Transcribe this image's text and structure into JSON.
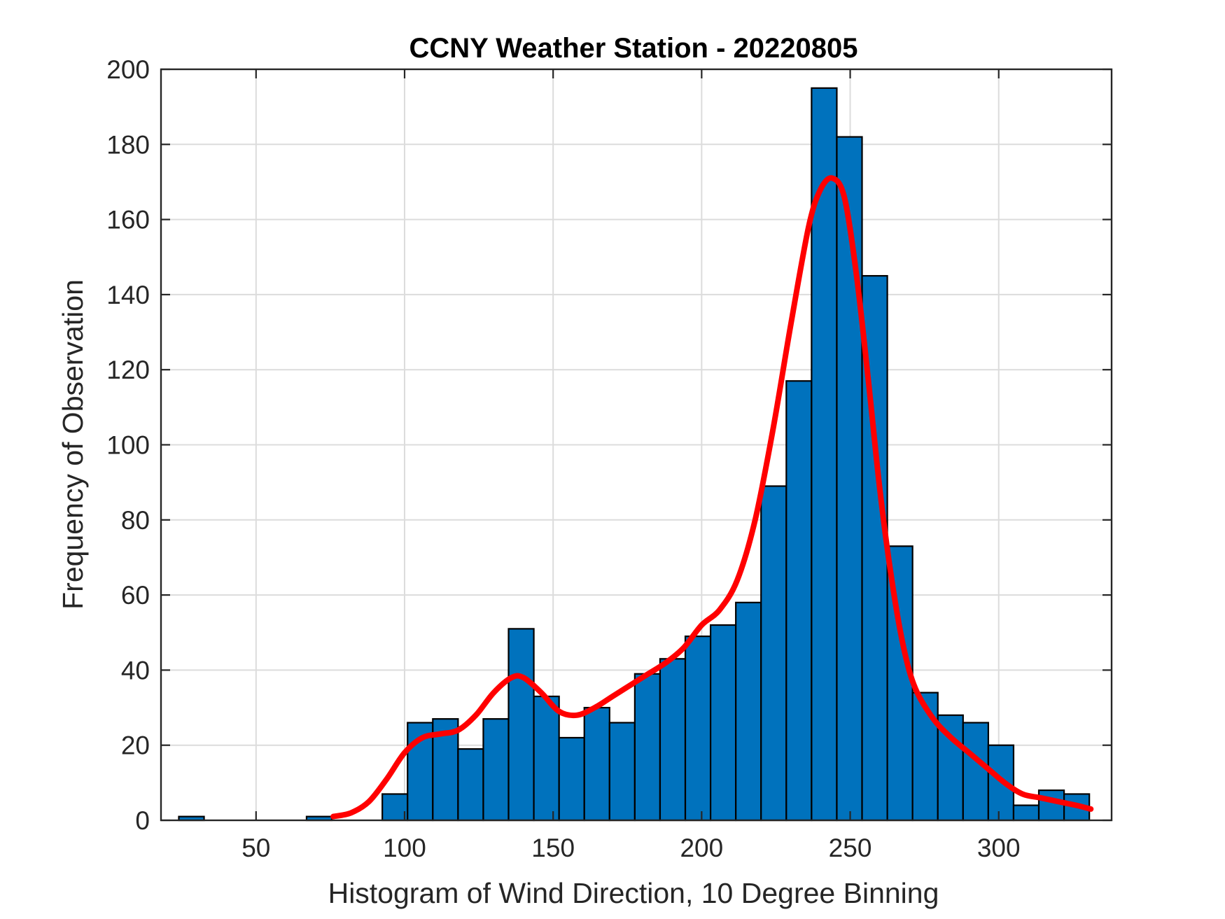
{
  "chart_data": {
    "type": "bar",
    "title": "CCNY Weather Station - 20220805",
    "xlabel": "Histogram of Wind Direction, 10 Degree Binning",
    "ylabel": "Frequency of Observation",
    "xlim": [
      18,
      338
    ],
    "ylim": [
      0,
      200
    ],
    "xticks": [
      50,
      100,
      150,
      200,
      250,
      300
    ],
    "yticks": [
      0,
      20,
      40,
      60,
      80,
      100,
      120,
      140,
      160,
      180,
      200
    ],
    "grid": true,
    "bin_width": 8.5,
    "bins": [
      {
        "left": 24,
        "value": 1
      },
      {
        "left": 67,
        "value": 1
      },
      {
        "left": 92.5,
        "value": 7
      },
      {
        "left": 101,
        "value": 26
      },
      {
        "left": 109.5,
        "value": 27
      },
      {
        "left": 118,
        "value": 19
      },
      {
        "left": 126.5,
        "value": 27
      },
      {
        "left": 135,
        "value": 51
      },
      {
        "left": 143.5,
        "value": 33
      },
      {
        "left": 152,
        "value": 22
      },
      {
        "left": 160.5,
        "value": 30
      },
      {
        "left": 169,
        "value": 26
      },
      {
        "left": 177.5,
        "value": 39
      },
      {
        "left": 186,
        "value": 43
      },
      {
        "left": 194.5,
        "value": 49
      },
      {
        "left": 203,
        "value": 52
      },
      {
        "left": 211.5,
        "value": 58
      },
      {
        "left": 220,
        "value": 89
      },
      {
        "left": 228.5,
        "value": 117
      },
      {
        "left": 237,
        "value": 195
      },
      {
        "left": 245.5,
        "value": 182
      },
      {
        "left": 254,
        "value": 145
      },
      {
        "left": 262.5,
        "value": 73
      },
      {
        "left": 271,
        "value": 34
      },
      {
        "left": 279.5,
        "value": 28
      },
      {
        "left": 288,
        "value": 26
      },
      {
        "left": 296.5,
        "value": 20
      },
      {
        "left": 305,
        "value": 4
      },
      {
        "left": 313.5,
        "value": 8
      },
      {
        "left": 322,
        "value": 7
      }
    ],
    "fit_curve": {
      "x": [
        76,
        82,
        88,
        94,
        100,
        106,
        112,
        118,
        124,
        130,
        136,
        140,
        146,
        152,
        158,
        164,
        170,
        176,
        182,
        188,
        194,
        200,
        206,
        212,
        218,
        224,
        230,
        236,
        240,
        244,
        248,
        252,
        256,
        260,
        264,
        268,
        272,
        278,
        284,
        290,
        296,
        302,
        308,
        314,
        320,
        326,
        331
      ],
      "y": [
        1,
        2,
        5,
        11,
        18,
        22,
        23,
        24,
        28,
        34,
        38,
        38,
        34,
        29,
        28,
        30,
        33,
        36,
        39,
        42,
        46,
        52,
        56,
        64,
        80,
        104,
        132,
        158,
        168,
        171,
        166,
        146,
        118,
        88,
        64,
        46,
        35,
        27,
        22,
        18,
        14,
        10,
        7,
        6,
        5,
        4,
        3
      ]
    },
    "colors": {
      "bar": "#0072BD",
      "bar_edge": "#000000",
      "curve": "#FF0000",
      "grid": "#DCDCDC"
    }
  }
}
